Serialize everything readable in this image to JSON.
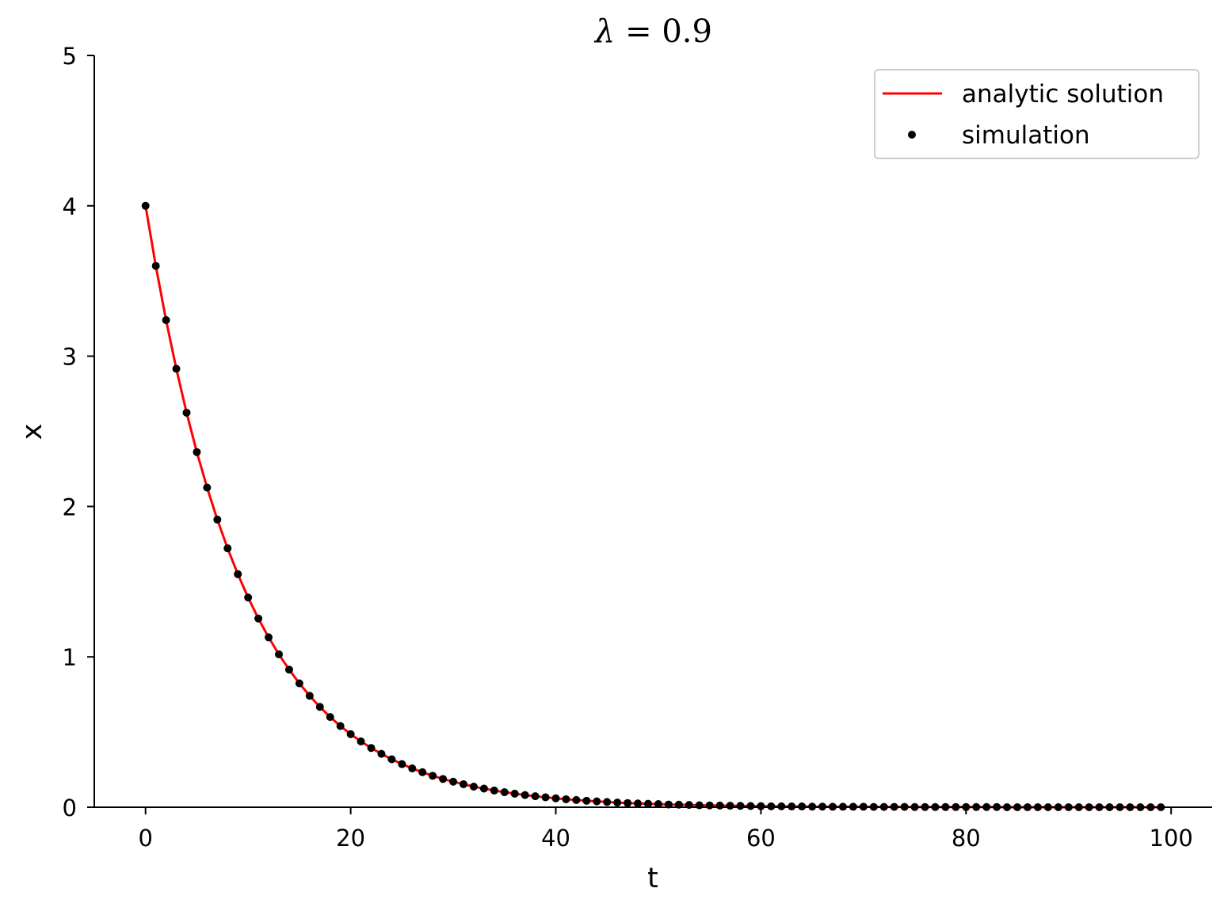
{
  "chart_data": {
    "type": "line",
    "title": "λ = 0.9",
    "title_parts": {
      "symbol": "λ",
      "rest": " = 0.9"
    },
    "xlabel": "t",
    "ylabel": "x",
    "xlim": [
      -5,
      104
    ],
    "ylim": [
      0,
      5
    ],
    "xticks": [
      0,
      20,
      40,
      60,
      80,
      100
    ],
    "yticks": [
      0,
      1,
      2,
      3,
      4,
      5
    ],
    "grid": false,
    "legend_position": "top-right",
    "series": [
      {
        "name": "analytic solution",
        "style": "line",
        "color": "#ff0000",
        "x": [
          0,
          1,
          2,
          3,
          4,
          5,
          6,
          7,
          8,
          9,
          10,
          11,
          12,
          13,
          14,
          15,
          16,
          17,
          18,
          19,
          20,
          21,
          22,
          23,
          24,
          25,
          26,
          27,
          28,
          29,
          30,
          31,
          32,
          33,
          34,
          35,
          36,
          37,
          38,
          39,
          40,
          41,
          42,
          43,
          44,
          45,
          46,
          47,
          48,
          49,
          50,
          51,
          52,
          53,
          54,
          55,
          56,
          57,
          58,
          59,
          60,
          61,
          62,
          63,
          64,
          65,
          66,
          67,
          68,
          69,
          70,
          71,
          72,
          73,
          74,
          75,
          76,
          77,
          78,
          79,
          80,
          81,
          82,
          83,
          84,
          85,
          86,
          87,
          88,
          89,
          90,
          91,
          92,
          93,
          94,
          95,
          96,
          97,
          98,
          99
        ],
        "y": [
          4.0,
          3.6,
          3.24,
          2.916,
          2.624,
          2.362,
          2.126,
          1.913,
          1.722,
          1.55,
          1.395,
          1.255,
          1.13,
          1.017,
          0.915,
          0.824,
          0.741,
          0.667,
          0.6,
          0.54,
          0.486,
          0.438,
          0.394,
          0.355,
          0.319,
          0.287,
          0.258,
          0.233,
          0.209,
          0.188,
          0.17,
          0.153,
          0.137,
          0.124,
          0.111,
          0.1,
          0.09,
          0.081,
          0.073,
          0.066,
          0.059,
          0.053,
          0.048,
          0.043,
          0.039,
          0.035,
          0.031,
          0.028,
          0.025,
          0.023,
          0.021,
          0.018,
          0.017,
          0.015,
          0.013,
          0.012,
          0.011,
          0.01,
          0.009,
          0.008,
          0.007,
          0.006,
          0.006,
          0.005,
          0.005,
          0.004,
          0.004,
          0.003,
          0.003,
          0.003,
          0.003,
          0.002,
          0.002,
          0.002,
          0.002,
          0.001,
          0.001,
          0.001,
          0.001,
          0.001,
          0.001,
          0.001,
          0.001,
          0.001,
          0.0,
          0.0,
          0.0,
          0.0,
          0.0,
          0.0,
          0.0,
          0.0,
          0.0,
          0.0,
          0.0,
          0.0,
          0.0,
          0.0,
          0.0,
          0.0
        ]
      },
      {
        "name": "simulation",
        "style": "dots",
        "color": "#000000",
        "x": [
          0,
          1,
          2,
          3,
          4,
          5,
          6,
          7,
          8,
          9,
          10,
          11,
          12,
          13,
          14,
          15,
          16,
          17,
          18,
          19,
          20,
          21,
          22,
          23,
          24,
          25,
          26,
          27,
          28,
          29,
          30,
          31,
          32,
          33,
          34,
          35,
          36,
          37,
          38,
          39,
          40,
          41,
          42,
          43,
          44,
          45,
          46,
          47,
          48,
          49,
          50,
          51,
          52,
          53,
          54,
          55,
          56,
          57,
          58,
          59,
          60,
          61,
          62,
          63,
          64,
          65,
          66,
          67,
          68,
          69,
          70,
          71,
          72,
          73,
          74,
          75,
          76,
          77,
          78,
          79,
          80,
          81,
          82,
          83,
          84,
          85,
          86,
          87,
          88,
          89,
          90,
          91,
          92,
          93,
          94,
          95,
          96,
          97,
          98,
          99
        ],
        "y": [
          4.0,
          3.6,
          3.24,
          2.916,
          2.624,
          2.362,
          2.126,
          1.913,
          1.722,
          1.55,
          1.395,
          1.255,
          1.13,
          1.017,
          0.915,
          0.824,
          0.741,
          0.667,
          0.6,
          0.54,
          0.486,
          0.438,
          0.394,
          0.355,
          0.319,
          0.287,
          0.258,
          0.233,
          0.209,
          0.188,
          0.17,
          0.153,
          0.137,
          0.124,
          0.111,
          0.1,
          0.09,
          0.081,
          0.073,
          0.066,
          0.059,
          0.053,
          0.048,
          0.043,
          0.039,
          0.035,
          0.031,
          0.028,
          0.025,
          0.023,
          0.021,
          0.018,
          0.017,
          0.015,
          0.013,
          0.012,
          0.011,
          0.01,
          0.009,
          0.008,
          0.007,
          0.006,
          0.006,
          0.005,
          0.005,
          0.004,
          0.004,
          0.003,
          0.003,
          0.003,
          0.003,
          0.002,
          0.002,
          0.002,
          0.002,
          0.001,
          0.001,
          0.001,
          0.001,
          0.001,
          0.001,
          0.001,
          0.001,
          0.001,
          0.0,
          0.0,
          0.0,
          0.0,
          0.0,
          0.0,
          0.0,
          0.0,
          0.0,
          0.0,
          0.0,
          0.0,
          0.0,
          0.0,
          0.0,
          0.0
        ]
      }
    ]
  }
}
